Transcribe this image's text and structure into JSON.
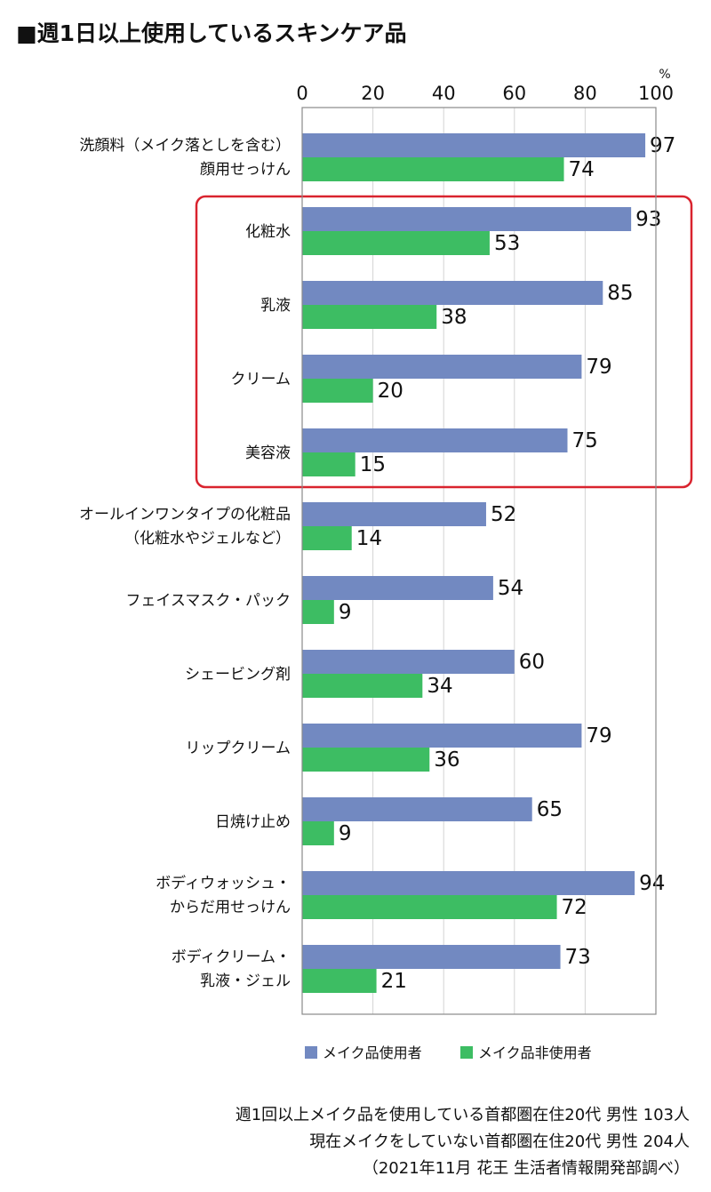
{
  "title": "■週1日以上使用しているスキンケア品",
  "chart_data": {
    "type": "bar",
    "orientation": "horizontal",
    "unit": "%",
    "xlim": [
      0,
      100
    ],
    "x_ticks": [
      "0",
      "20",
      "40",
      "60",
      "80",
      "100"
    ],
    "grid": true,
    "categories": [
      [
        "洗顔料（メイク落としを含む）",
        "顔用せっけん"
      ],
      [
        "化粧水"
      ],
      [
        "乳液"
      ],
      [
        "クリーム"
      ],
      [
        "美容液"
      ],
      [
        "オールインワンタイプの化粧品",
        "（化粧水やジェルなど）"
      ],
      [
        "フェイスマスク・パック"
      ],
      [
        "シェービング剤"
      ],
      [
        "リップクリーム"
      ],
      [
        "日焼け止め"
      ],
      [
        "ボディウォッシュ・",
        "からだ用せっけん"
      ],
      [
        "ボディクリーム・",
        "乳液・ジェル"
      ]
    ],
    "series": [
      {
        "name": "メイク品使用者",
        "color": "#7289c1",
        "values": [
          97,
          93,
          85,
          79,
          75,
          52,
          54,
          60,
          79,
          65,
          94,
          73
        ]
      },
      {
        "name": "メイク品非使用者",
        "color": "#3dbd63",
        "values": [
          74,
          53,
          38,
          20,
          15,
          14,
          9,
          34,
          36,
          9,
          72,
          21
        ]
      }
    ],
    "legend_position": "bottom",
    "highlight": {
      "from_index": 1,
      "to_index": 4,
      "color": "#d9232e"
    }
  },
  "footnotes": [
    "週1回以上メイク品を使用している首都圏在住20代 男性 103人",
    "現在メイクをしていない首都圏在住20代 男性 204人",
    "（2021年11月 花王 生活者情報開発部調べ）"
  ]
}
